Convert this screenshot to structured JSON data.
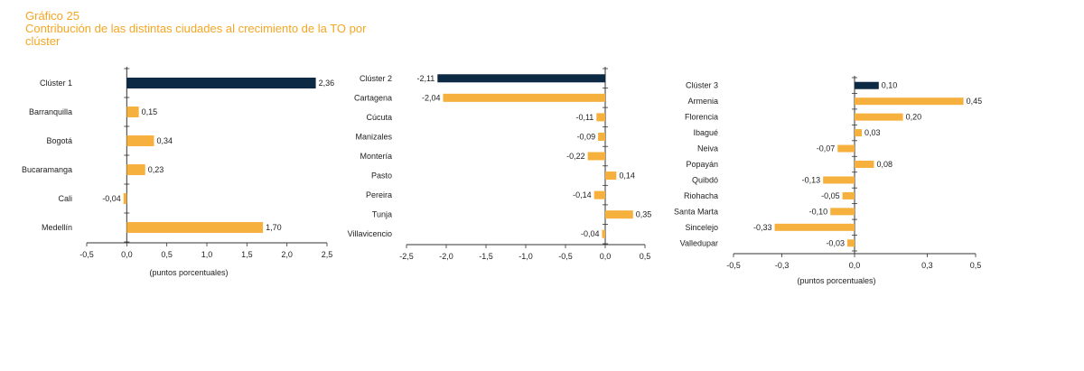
{
  "heading": {
    "number": "Gráfico 25",
    "title_line1": "Contribución de las distintas ciudades al crecimiento de la TO por",
    "title_line2": "clúster"
  },
  "colors": {
    "highlight": "#0d2a45",
    "bar": "#f5b03d",
    "axis": "#333333"
  },
  "chart_data": [
    {
      "type": "bar",
      "orientation": "horizontal",
      "categories": [
        "Clúster 1",
        "Barranquilla",
        "Bogotá",
        "Bucaramanga",
        "Cali",
        "Medellín"
      ],
      "values": [
        2.36,
        0.15,
        0.34,
        0.23,
        -0.04,
        1.7
      ],
      "value_labels": [
        "2,36",
        "0,15",
        "0,34",
        "0,23",
        "-0,04",
        "1,70"
      ],
      "xlim": [
        -0.5,
        2.5
      ],
      "xticks": [
        -0.5,
        0.0,
        0.5,
        1.0,
        1.5,
        2.0,
        2.5
      ],
      "xtick_labels": [
        "-0,5",
        "0,0",
        "0,5",
        "1,0",
        "1,5",
        "2,0",
        "2,5"
      ],
      "xlabel": "(puntos porcentuales)",
      "highlight_index": 0
    },
    {
      "type": "bar",
      "orientation": "horizontal",
      "categories": [
        "Clúster 2",
        "Cartagena",
        "Cúcuta",
        "Manizales",
        "Montería",
        "Pasto",
        "Pereira",
        "Tunja",
        "Villavicencio"
      ],
      "values": [
        -2.11,
        -2.04,
        -0.11,
        -0.09,
        -0.22,
        0.14,
        -0.14,
        0.35,
        -0.04
      ],
      "value_labels": [
        "-2,11",
        "-2,04",
        "-0,11",
        "-0,09",
        "-0,22",
        "0,14",
        "-0,14",
        "0,35",
        "-0,04"
      ],
      "xlim": [
        -2.5,
        0.5
      ],
      "xticks": [
        -2.5,
        -2.0,
        -1.5,
        -1.0,
        -0.5,
        0.0,
        0.5
      ],
      "xtick_labels": [
        "-2,5",
        "-2,0",
        "-1,5",
        "-1,0",
        "-0,5",
        "0,0",
        "0,5"
      ],
      "xlabel": "",
      "highlight_index": 0
    },
    {
      "type": "bar",
      "orientation": "horizontal",
      "categories": [
        "Clúster 3",
        "Armenia",
        "Florencia",
        "Ibagué",
        "Neiva",
        "Popayán",
        "Quibdó",
        "Riohacha",
        "Santa Marta",
        "Sincelejo",
        "Valledupar"
      ],
      "values": [
        0.1,
        0.45,
        0.2,
        0.03,
        -0.07,
        0.08,
        -0.13,
        -0.05,
        -0.1,
        -0.33,
        -0.03
      ],
      "value_labels": [
        "0,10",
        "0,45",
        "0,20",
        "0,03",
        "-0,07",
        "0,08",
        "-0,13",
        "-0,05",
        "-0,10",
        "-0,33",
        "-0,03"
      ],
      "xlim": [
        -0.5,
        0.5
      ],
      "xticks": [
        -0.5,
        -0.3,
        0.0,
        0.3,
        0.5
      ],
      "xtick_labels": [
        "-0,5",
        "-0,3",
        "0,0",
        "0,3",
        "0,5"
      ],
      "xlabel": "(puntos porcentuales)",
      "highlight_index": 0
    }
  ]
}
